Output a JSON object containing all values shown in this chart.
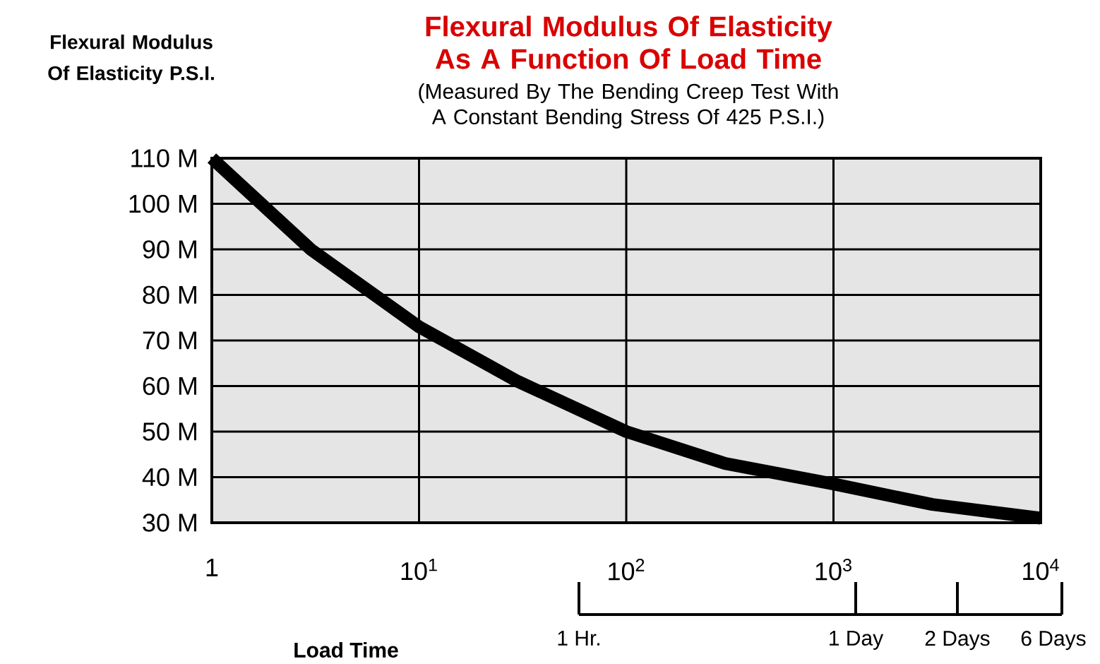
{
  "chart_data": {
    "type": "line",
    "title": "Flexural Modulus Of Elasticity As A Function Of Load Time",
    "subtitle": "(Measured By The Bending Creep Test With A Constant Bending Stress Of 425 P.S.I.)",
    "ylabel": "Flexural Modulus Of Elasticity P.S.I.",
    "xlabel": "Load Time",
    "x": [
      1,
      3,
      10,
      30,
      100,
      300,
      1000,
      3000,
      10000
    ],
    "series": [
      {
        "color": "#000000",
        "values": [
          110,
          90,
          73,
          61,
          50,
          43,
          38.5,
          34,
          31
        ]
      }
    ],
    "log": "x",
    "grid": true,
    "marker": "none",
    "line_style": "solid",
    "xlim": [
      1,
      10000
    ],
    "xticks": [
      1,
      {
        "value": 10,
        "label": "10$^{1}$"
      },
      {
        "value": 100,
        "label": "10$^{2}$"
      },
      {
        "value": 1000,
        "label": "10$^{3}$"
      },
      {
        "value": 10000,
        "label": "10$^{4}$"
      }
    ],
    "ylim": [
      30,
      110
    ],
    "yticks": [
      {
        "value": 30,
        "label": "30 M"
      },
      {
        "value": 40,
        "label": "40 M"
      },
      {
        "value": 50,
        "label": "50 M"
      },
      {
        "value": 60,
        "label": "60 M"
      },
      {
        "value": 70,
        "label": "70 M"
      },
      {
        "value": 80,
        "label": "80 M"
      },
      {
        "value": 90,
        "label": "90 M"
      },
      {
        "value": 100,
        "label": "100 M"
      },
      {
        "value": 110,
        "label": "110 M"
      }
    ],
    "annotations": [
      "1 Hr.",
      "1 Day",
      "2 Days",
      "6 Days"
    ]
  }
}
